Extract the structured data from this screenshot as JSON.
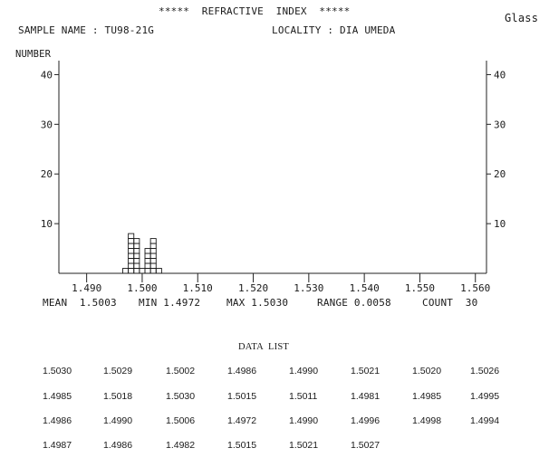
{
  "header": {
    "title": "*****  REFRACTIVE  INDEX  *****",
    "corner_label": "Glass",
    "sample_name": "SAMPLE NAME : TU98-21G",
    "locality": "LOCALITY : DIA UMEDA"
  },
  "chart_data": {
    "type": "bar",
    "ylabel": "NUMBER",
    "ylim": [
      0,
      45
    ],
    "yticks": [
      10,
      20,
      30,
      40
    ],
    "xlim": [
      1.485,
      1.562
    ],
    "xticks": [
      "1.490",
      "1.500",
      "1.510",
      "1.520",
      "1.530",
      "1.540",
      "1.550",
      "1.560"
    ],
    "bin_width": 0.001,
    "bins": [
      1.497,
      1.498,
      1.499,
      1.5,
      1.501,
      1.502,
      1.503
    ],
    "values": [
      1,
      8,
      7,
      1,
      5,
      7,
      1
    ],
    "grid": false,
    "stats": {
      "mean": "MEAN  1.5003",
      "min": "MIN 1.4972",
      "max": "MAX 1.5030",
      "range": "RANGE 0.0058",
      "count": "COUNT  30"
    }
  },
  "data_list": {
    "title": "DATA  LIST",
    "rows": [
      [
        "1.5030",
        "1.5029",
        "1.5002",
        "1.4986",
        "1.4990",
        "1.5021",
        "1.5020",
        "1.5026"
      ],
      [
        "1.4985",
        "1.5018",
        "1.5030",
        "1.5015",
        "1.5011",
        "1.4981",
        "1.4985",
        "1.4995"
      ],
      [
        "1.4986",
        "1.4990",
        "1.5006",
        "1.4972",
        "1.4990",
        "1.4996",
        "1.4998",
        "1.4994"
      ],
      [
        "1.4987",
        "1.4986",
        "1.4982",
        "1.5015",
        "1.5021",
        "1.5027"
      ]
    ]
  }
}
